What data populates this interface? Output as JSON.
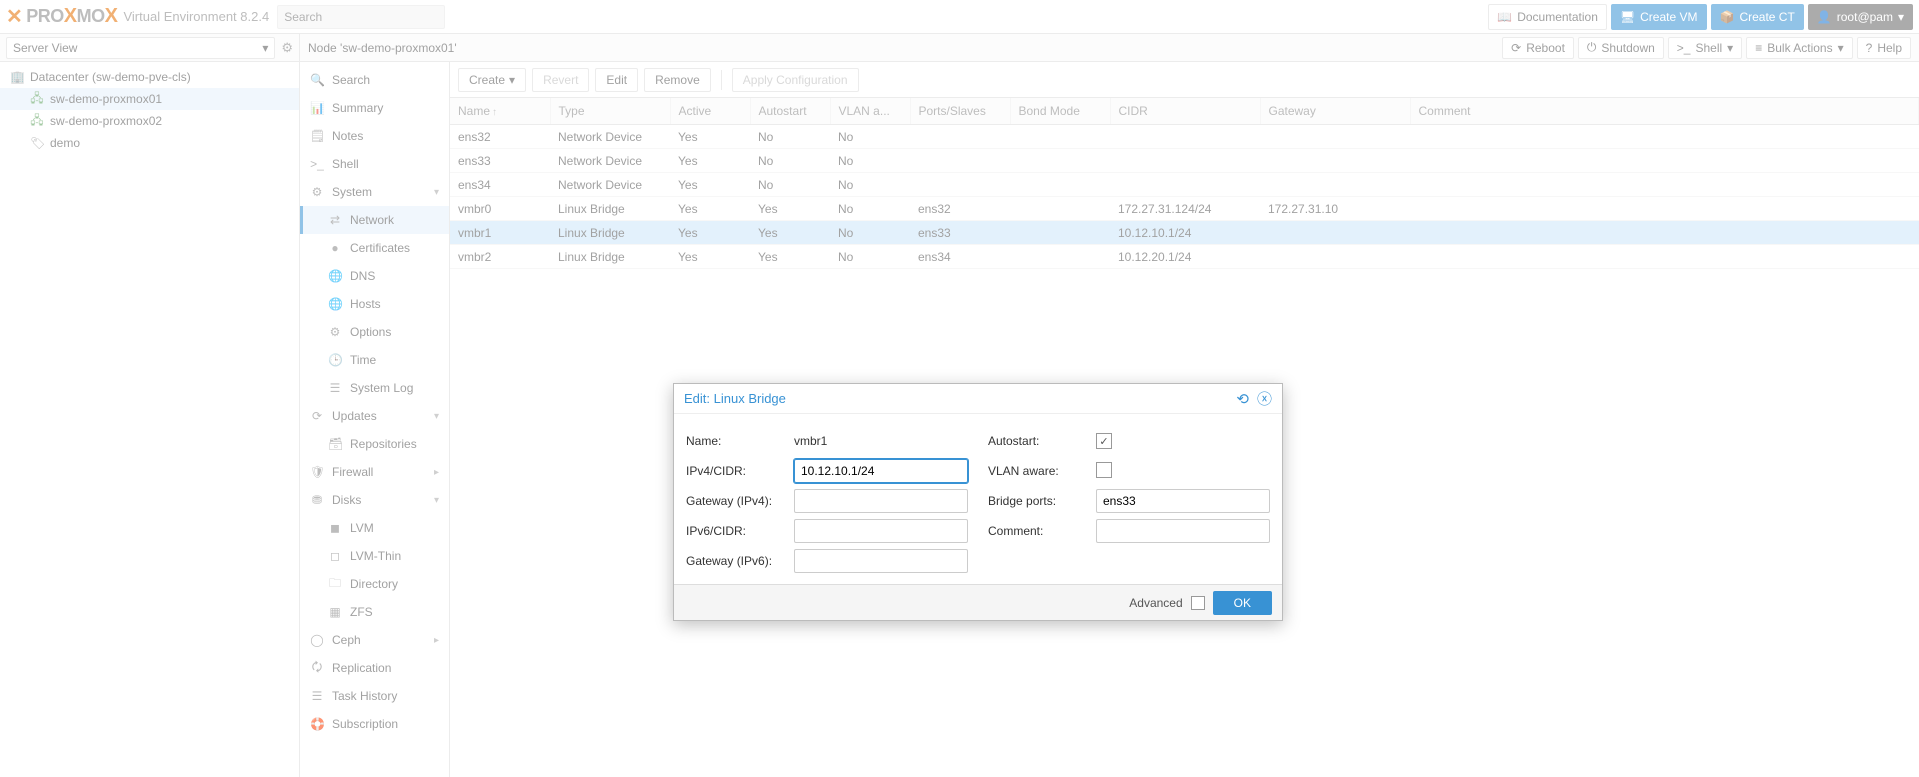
{
  "colors": {
    "accent": "#3892d4",
    "orange": "#e57000",
    "sel_row": "#cde6f9",
    "sel_bg": "#e6f1fb"
  },
  "header": {
    "product": "Virtual Environment 8.2.4",
    "search_placeholder": "Search",
    "doc": "Documentation",
    "create_vm": "Create VM",
    "create_ct": "Create CT",
    "user": "root@pam"
  },
  "left": {
    "view": "Server View",
    "tree": {
      "dc": "Datacenter (sw-demo-pve-cls)",
      "n1": "sw-demo-proxmox01",
      "n2": "sw-demo-proxmox02",
      "tag": "demo"
    }
  },
  "crumb": {
    "title": "Node 'sw-demo-proxmox01'",
    "reboot": "Reboot",
    "shutdown": "Shutdown",
    "shell": "Shell",
    "bulk": "Bulk Actions",
    "help": "Help"
  },
  "mid": {
    "search": "Search",
    "summary": "Summary",
    "notes": "Notes",
    "shell": "Shell",
    "system": "System",
    "network": "Network",
    "certificates": "Certificates",
    "dns": "DNS",
    "hosts": "Hosts",
    "options": "Options",
    "time": "Time",
    "syslog": "System Log",
    "updates": "Updates",
    "repositories": "Repositories",
    "firewall": "Firewall",
    "disks": "Disks",
    "lvm": "LVM",
    "lvmthin": "LVM-Thin",
    "directory": "Directory",
    "zfs": "ZFS",
    "ceph": "Ceph",
    "replication": "Replication",
    "taskhistory": "Task History",
    "subscription": "Subscription"
  },
  "toolbar": {
    "create": "Create",
    "revert": "Revert",
    "edit": "Edit",
    "remove": "Remove",
    "apply": "Apply Configuration"
  },
  "cols": {
    "name": "Name",
    "type": "Type",
    "active": "Active",
    "autostart": "Autostart",
    "vlan": "VLAN a...",
    "ports": "Ports/Slaves",
    "bond": "Bond Mode",
    "cidr": "CIDR",
    "gateway": "Gateway",
    "comment": "Comment"
  },
  "rows": [
    {
      "name": "ens32",
      "type": "Network Device",
      "active": "Yes",
      "autostart": "No",
      "vlan": "No",
      "ports": "",
      "bond": "",
      "cidr": "",
      "gateway": "",
      "comment": ""
    },
    {
      "name": "ens33",
      "type": "Network Device",
      "active": "Yes",
      "autostart": "No",
      "vlan": "No",
      "ports": "",
      "bond": "",
      "cidr": "",
      "gateway": "",
      "comment": ""
    },
    {
      "name": "ens34",
      "type": "Network Device",
      "active": "Yes",
      "autostart": "No",
      "vlan": "No",
      "ports": "",
      "bond": "",
      "cidr": "",
      "gateway": "",
      "comment": ""
    },
    {
      "name": "vmbr0",
      "type": "Linux Bridge",
      "active": "Yes",
      "autostart": "Yes",
      "vlan": "No",
      "ports": "ens32",
      "bond": "",
      "cidr": "172.27.31.124/24",
      "gateway": "172.27.31.10",
      "comment": ""
    },
    {
      "name": "vmbr1",
      "type": "Linux Bridge",
      "active": "Yes",
      "autostart": "Yes",
      "vlan": "No",
      "ports": "ens33",
      "bond": "",
      "cidr": "10.12.10.1/24",
      "gateway": "",
      "comment": ""
    },
    {
      "name": "vmbr2",
      "type": "Linux Bridge",
      "active": "Yes",
      "autostart": "Yes",
      "vlan": "No",
      "ports": "ens34",
      "bond": "",
      "cidr": "10.12.20.1/24",
      "gateway": "",
      "comment": ""
    }
  ],
  "dialog": {
    "title": "Edit: Linux Bridge",
    "name_l": "Name:",
    "name_v": "vmbr1",
    "cidr4_l": "IPv4/CIDR:",
    "cidr4_v": "10.12.10.1/24",
    "gw4_l": "Gateway (IPv4):",
    "gw4_v": "",
    "cidr6_l": "IPv6/CIDR:",
    "cidr6_v": "",
    "gw6_l": "Gateway (IPv6):",
    "gw6_v": "",
    "autostart_l": "Autostart:",
    "autostart_v": true,
    "vlan_l": "VLAN aware:",
    "vlan_v": false,
    "ports_l": "Bridge ports:",
    "ports_v": "ens33",
    "comment_l": "Comment:",
    "comment_v": "",
    "advanced": "Advanced",
    "ok": "OK"
  }
}
